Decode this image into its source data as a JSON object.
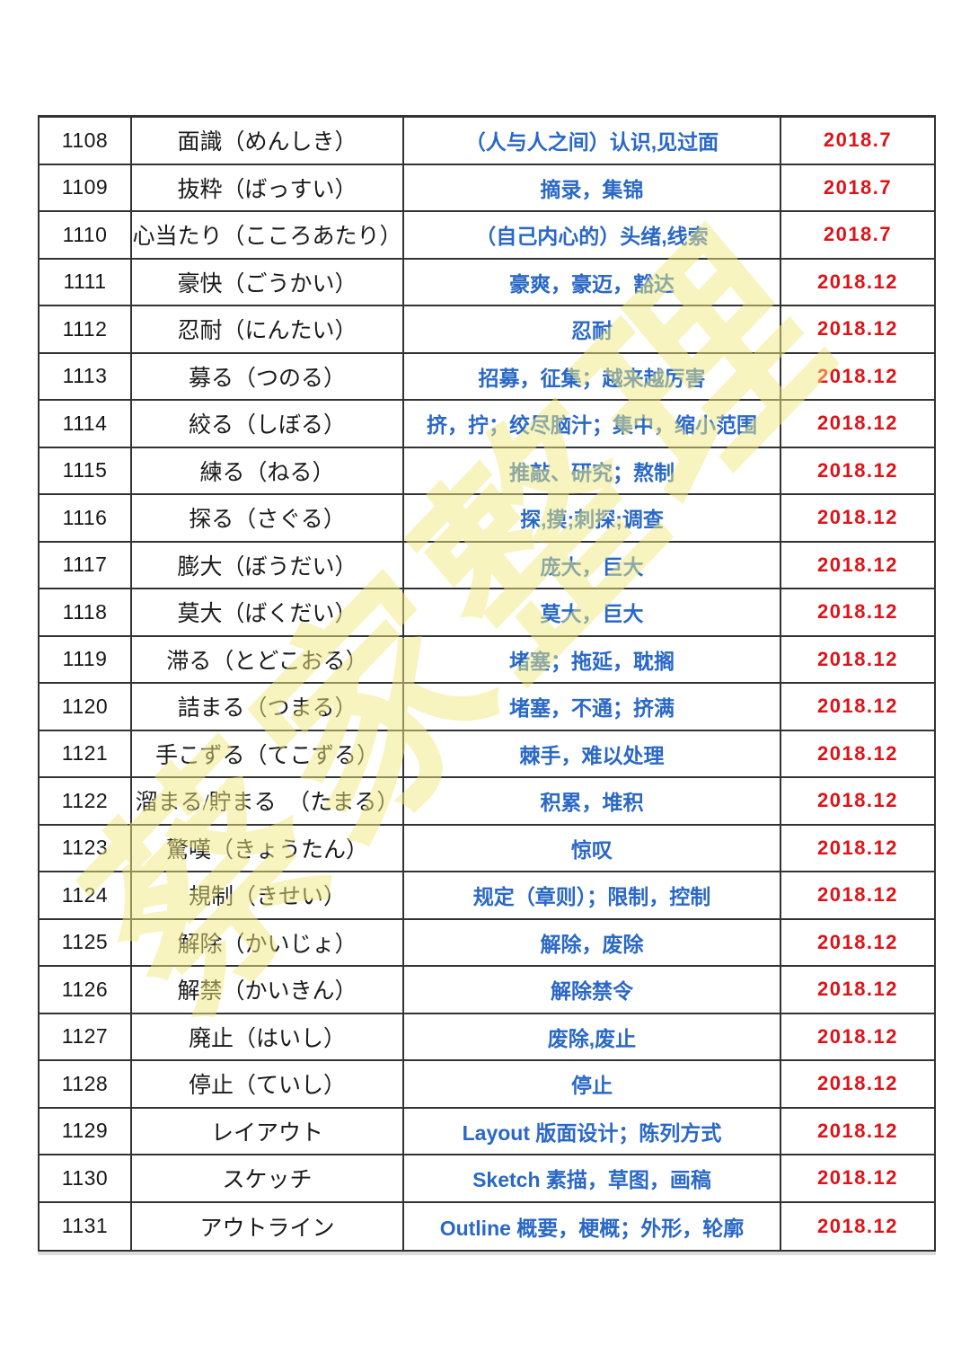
{
  "watermark": {
    "text": "蔡家整理",
    "color": "#f2ea80"
  },
  "colors": {
    "meaning_blue": "#2a68c6",
    "date_red": "#dd1318",
    "border": "#333333"
  },
  "table": {
    "rows": [
      {
        "id": "1108",
        "japanese": "面識（めんしき）",
        "meaning": "（人与人之间）认识,见过面",
        "date": "2018.7"
      },
      {
        "id": "1109",
        "japanese": "抜粋（ばっすい）",
        "meaning": "摘录，集锦",
        "date": "2018.7"
      },
      {
        "id": "1110",
        "japanese": "心当たり（こころあたり）",
        "meaning": "（自己内心的）头绪,线索",
        "date": "2018.7"
      },
      {
        "id": "1111",
        "japanese": "豪快（ごうかい）",
        "meaning": "豪爽，豪迈，豁达",
        "date": "2018.12"
      },
      {
        "id": "1112",
        "japanese": "忍耐（にんたい）",
        "meaning": "忍耐",
        "date": "2018.12"
      },
      {
        "id": "1113",
        "japanese": "募る（つのる）",
        "meaning": "招募，征集；越来越厉害",
        "date": "2018.12"
      },
      {
        "id": "1114",
        "japanese": "絞る（しぼる）",
        "meaning": "挤，拧；绞尽脑汁；集中，缩小范围",
        "date": "2018.12"
      },
      {
        "id": "1115",
        "japanese": "練る（ねる）",
        "meaning": "推敲、研究；熬制",
        "date": "2018.12"
      },
      {
        "id": "1116",
        "japanese": "探る（さぐる）",
        "meaning": "探,摸;刺探;调查",
        "date": "2018.12"
      },
      {
        "id": "1117",
        "japanese": "膨大（ぼうだい）",
        "meaning": "庞大，巨大",
        "date": "2018.12"
      },
      {
        "id": "1118",
        "japanese": "莫大（ばくだい）",
        "meaning": "莫大，巨大",
        "date": "2018.12"
      },
      {
        "id": "1119",
        "japanese": "滞る（とどこおる）",
        "meaning": "堵塞；拖延，耽搁",
        "date": "2018.12"
      },
      {
        "id": "1120",
        "japanese": "詰まる（つまる）",
        "meaning": "堵塞，不通；挤满",
        "date": "2018.12"
      },
      {
        "id": "1121",
        "japanese": "手こずる（てこずる）",
        "meaning": "棘手，难以处理",
        "date": "2018.12"
      },
      {
        "id": "1122",
        "japanese": "溜まる/貯まる　（たまる）",
        "meaning": "积累，堆积",
        "date": "2018.12"
      },
      {
        "id": "1123",
        "japanese": "驚嘆（きょうたん）",
        "meaning": "惊叹",
        "date": "2018.12"
      },
      {
        "id": "1124",
        "japanese": "規制（きせい）",
        "meaning": "规定（章则）；限制，控制",
        "date": "2018.12"
      },
      {
        "id": "1125",
        "japanese": "解除（かいじょ）",
        "meaning": "解除，废除",
        "date": "2018.12"
      },
      {
        "id": "1126",
        "japanese": "解禁（かいきん）",
        "meaning": "解除禁令",
        "date": "2018.12"
      },
      {
        "id": "1127",
        "japanese": "廃止（はいし）",
        "meaning": "废除,废止",
        "date": "2018.12"
      },
      {
        "id": "1128",
        "japanese": "停止（ていし）",
        "meaning": "停止",
        "date": "2018.12"
      },
      {
        "id": "1129",
        "japanese": "レイアウト",
        "meaning": "Layout 版面设计；陈列方式",
        "date": "2018.12"
      },
      {
        "id": "1130",
        "japanese": "スケッチ",
        "meaning": "Sketch 素描，草图，画稿",
        "date": "2018.12"
      },
      {
        "id": "1131",
        "japanese": "アウトライン",
        "meaning": "Outline 概要，梗概；外形，轮廓",
        "date": "2018.12"
      }
    ]
  }
}
